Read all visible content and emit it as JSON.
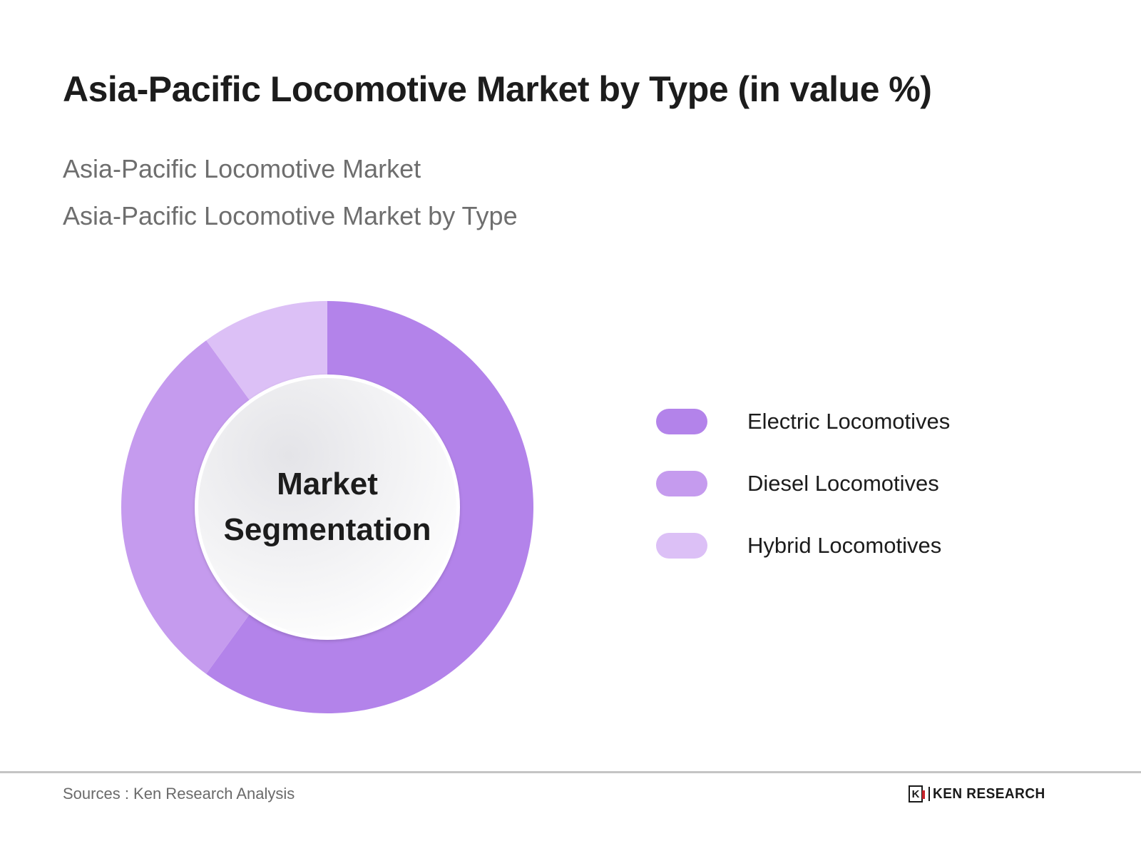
{
  "header": {
    "title": "Asia-Pacific Locomotive Market by Type (in value %)",
    "subtitle_1": "Asia-Pacific Locomotive Market",
    "subtitle_2": "Asia-Pacific Locomotive Market by Type"
  },
  "donut": {
    "center_line_1": "Market",
    "center_line_2": "Segmentation"
  },
  "legend": {
    "items": [
      {
        "label": "Electric Locomotives",
        "color": "#b383ea"
      },
      {
        "label": "Diesel Locomotives",
        "color": "#c59bee"
      },
      {
        "label": "Hybrid Locomotives",
        "color": "#dcc0f6"
      }
    ]
  },
  "footer": {
    "source": "Sources : Ken Research Analysis",
    "logo_mark": "K",
    "logo_text": "KEN RESEARCH"
  },
  "chart_data": {
    "type": "pie",
    "variant": "donut",
    "title": "Asia-Pacific Locomotive Market by Type (in value %)",
    "center_label": "Market Segmentation",
    "categories": [
      "Electric Locomotives",
      "Diesel Locomotives",
      "Hybrid Locomotives"
    ],
    "values": [
      60,
      30,
      10
    ],
    "colors": [
      "#b383ea",
      "#c59bee",
      "#dcc0f6"
    ],
    "unit": "%",
    "start_angle": "12 o'clock, clockwise",
    "legend_position": "right"
  }
}
